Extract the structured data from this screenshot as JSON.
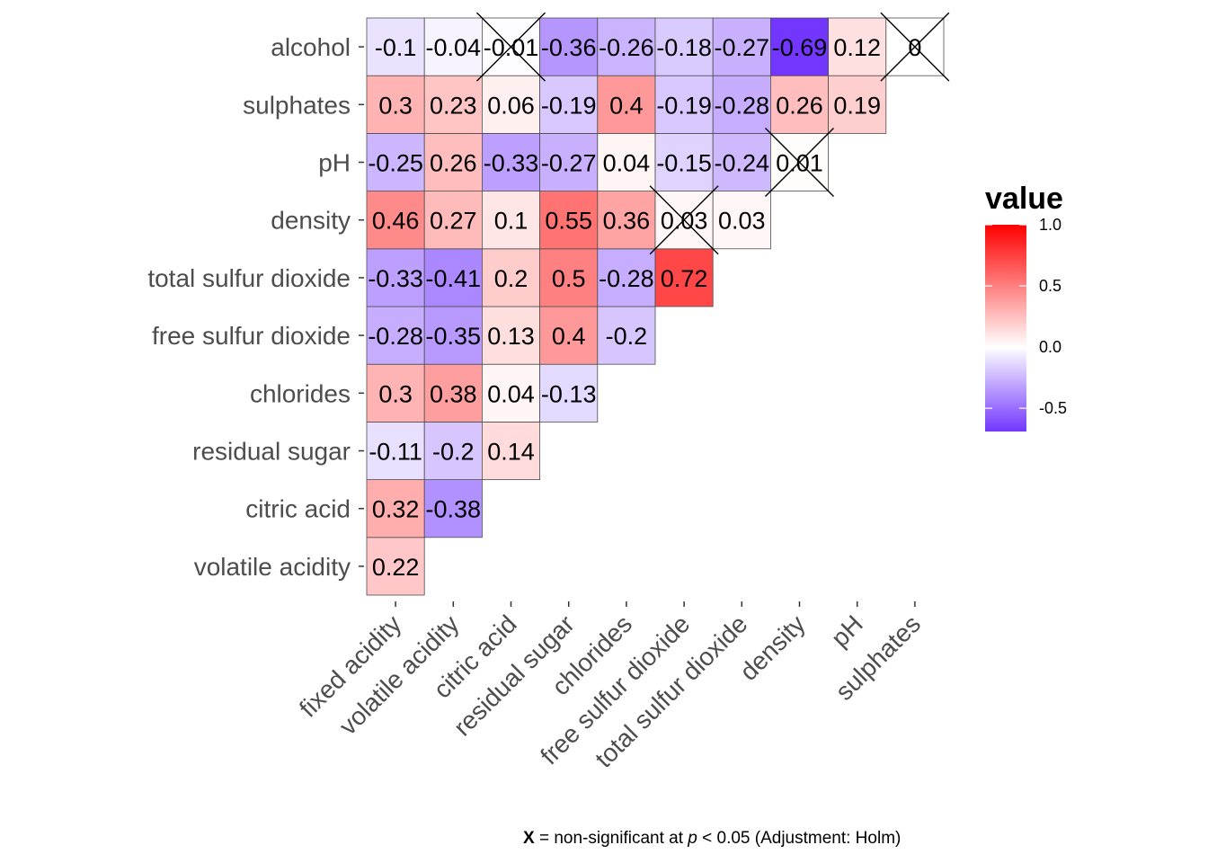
{
  "chart_data": {
    "type": "heatmap",
    "title": "",
    "xlabel": "",
    "ylabel": "",
    "x_categories": [
      "fixed acidity",
      "volatile acidity",
      "citric acid",
      "residual sugar",
      "chlorides",
      "free sulfur dioxide",
      "total sulfur dioxide",
      "density",
      "pH",
      "sulphates"
    ],
    "y_categories": [
      "volatile acidity",
      "citric acid",
      "residual sugar",
      "chlorides",
      "free sulfur dioxide",
      "total sulfur dioxide",
      "density",
      "pH",
      "sulphates",
      "alcohol"
    ],
    "cells": [
      {
        "x": "fixed acidity",
        "y": "volatile acidity",
        "value": 0.22,
        "label": "0.22",
        "significant": true
      },
      {
        "x": "fixed acidity",
        "y": "citric acid",
        "value": 0.32,
        "label": "0.32",
        "significant": true
      },
      {
        "x": "volatile acidity",
        "y": "citric acid",
        "value": -0.38,
        "label": "-0.38",
        "significant": true
      },
      {
        "x": "fixed acidity",
        "y": "residual sugar",
        "value": -0.11,
        "label": "-0.11",
        "significant": true
      },
      {
        "x": "volatile acidity",
        "y": "residual sugar",
        "value": -0.2,
        "label": "-0.2",
        "significant": true
      },
      {
        "x": "citric acid",
        "y": "residual sugar",
        "value": 0.14,
        "label": "0.14",
        "significant": true
      },
      {
        "x": "fixed acidity",
        "y": "chlorides",
        "value": 0.3,
        "label": "0.3",
        "significant": true
      },
      {
        "x": "volatile acidity",
        "y": "chlorides",
        "value": 0.38,
        "label": "0.38",
        "significant": true
      },
      {
        "x": "citric acid",
        "y": "chlorides",
        "value": 0.04,
        "label": "0.04",
        "significant": true
      },
      {
        "x": "residual sugar",
        "y": "chlorides",
        "value": -0.13,
        "label": "-0.13",
        "significant": true
      },
      {
        "x": "fixed acidity",
        "y": "free sulfur dioxide",
        "value": -0.28,
        "label": "-0.28",
        "significant": true
      },
      {
        "x": "volatile acidity",
        "y": "free sulfur dioxide",
        "value": -0.35,
        "label": "-0.35",
        "significant": true
      },
      {
        "x": "citric acid",
        "y": "free sulfur dioxide",
        "value": 0.13,
        "label": "0.13",
        "significant": true
      },
      {
        "x": "residual sugar",
        "y": "free sulfur dioxide",
        "value": 0.4,
        "label": "0.4",
        "significant": true
      },
      {
        "x": "chlorides",
        "y": "free sulfur dioxide",
        "value": -0.2,
        "label": "-0.2",
        "significant": true
      },
      {
        "x": "fixed acidity",
        "y": "total sulfur dioxide",
        "value": -0.33,
        "label": "-0.33",
        "significant": true
      },
      {
        "x": "volatile acidity",
        "y": "total sulfur dioxide",
        "value": -0.41,
        "label": "-0.41",
        "significant": true
      },
      {
        "x": "citric acid",
        "y": "total sulfur dioxide",
        "value": 0.2,
        "label": "0.2",
        "significant": true
      },
      {
        "x": "residual sugar",
        "y": "total sulfur dioxide",
        "value": 0.5,
        "label": "0.5",
        "significant": true
      },
      {
        "x": "chlorides",
        "y": "total sulfur dioxide",
        "value": -0.28,
        "label": "-0.28",
        "significant": true
      },
      {
        "x": "free sulfur dioxide",
        "y": "total sulfur dioxide",
        "value": 0.72,
        "label": "0.72",
        "significant": true
      },
      {
        "x": "fixed acidity",
        "y": "density",
        "value": 0.46,
        "label": "0.46",
        "significant": true
      },
      {
        "x": "volatile acidity",
        "y": "density",
        "value": 0.27,
        "label": "0.27",
        "significant": true
      },
      {
        "x": "citric acid",
        "y": "density",
        "value": 0.1,
        "label": "0.1",
        "significant": true
      },
      {
        "x": "residual sugar",
        "y": "density",
        "value": 0.55,
        "label": "0.55",
        "significant": true
      },
      {
        "x": "chlorides",
        "y": "density",
        "value": 0.36,
        "label": "0.36",
        "significant": true
      },
      {
        "x": "free sulfur dioxide",
        "y": "density",
        "value": 0.03,
        "label": "0.03",
        "significant": false
      },
      {
        "x": "total sulfur dioxide",
        "y": "density",
        "value": 0.03,
        "label": "0.03",
        "significant": true
      },
      {
        "x": "fixed acidity",
        "y": "pH",
        "value": -0.25,
        "label": "-0.25",
        "significant": true
      },
      {
        "x": "volatile acidity",
        "y": "pH",
        "value": 0.26,
        "label": "0.26",
        "significant": true
      },
      {
        "x": "citric acid",
        "y": "pH",
        "value": -0.33,
        "label": "-0.33",
        "significant": true
      },
      {
        "x": "residual sugar",
        "y": "pH",
        "value": -0.27,
        "label": "-0.27",
        "significant": true
      },
      {
        "x": "chlorides",
        "y": "pH",
        "value": 0.04,
        "label": "0.04",
        "significant": true
      },
      {
        "x": "free sulfur dioxide",
        "y": "pH",
        "value": -0.15,
        "label": "-0.15",
        "significant": true
      },
      {
        "x": "total sulfur dioxide",
        "y": "pH",
        "value": -0.24,
        "label": "-0.24",
        "significant": true
      },
      {
        "x": "density",
        "y": "pH",
        "value": 0.01,
        "label": "0.01",
        "significant": false
      },
      {
        "x": "fixed acidity",
        "y": "sulphates",
        "value": 0.3,
        "label": "0.3",
        "significant": true
      },
      {
        "x": "volatile acidity",
        "y": "sulphates",
        "value": 0.23,
        "label": "0.23",
        "significant": true
      },
      {
        "x": "citric acid",
        "y": "sulphates",
        "value": 0.06,
        "label": "0.06",
        "significant": true
      },
      {
        "x": "residual sugar",
        "y": "sulphates",
        "value": -0.19,
        "label": "-0.19",
        "significant": true
      },
      {
        "x": "chlorides",
        "y": "sulphates",
        "value": 0.4,
        "label": "0.4",
        "significant": true
      },
      {
        "x": "free sulfur dioxide",
        "y": "sulphates",
        "value": -0.19,
        "label": "-0.19",
        "significant": true
      },
      {
        "x": "total sulfur dioxide",
        "y": "sulphates",
        "value": -0.28,
        "label": "-0.28",
        "significant": true
      },
      {
        "x": "density",
        "y": "sulphates",
        "value": 0.26,
        "label": "0.26",
        "significant": true
      },
      {
        "x": "pH",
        "y": "sulphates",
        "value": 0.19,
        "label": "0.19",
        "significant": true
      },
      {
        "x": "fixed acidity",
        "y": "alcohol",
        "value": -0.1,
        "label": "-0.1",
        "significant": true
      },
      {
        "x": "volatile acidity",
        "y": "alcohol",
        "value": -0.04,
        "label": "-0.04",
        "significant": true
      },
      {
        "x": "citric acid",
        "y": "alcohol",
        "value": -0.01,
        "label": "-0.01",
        "significant": false
      },
      {
        "x": "residual sugar",
        "y": "alcohol",
        "value": -0.36,
        "label": "-0.36",
        "significant": true
      },
      {
        "x": "chlorides",
        "y": "alcohol",
        "value": -0.26,
        "label": "-0.26",
        "significant": true
      },
      {
        "x": "free sulfur dioxide",
        "y": "alcohol",
        "value": -0.18,
        "label": "-0.18",
        "significant": true
      },
      {
        "x": "total sulfur dioxide",
        "y": "alcohol",
        "value": -0.27,
        "label": "-0.27",
        "significant": true
      },
      {
        "x": "density",
        "y": "alcohol",
        "value": -0.69,
        "label": "-0.69",
        "significant": true
      },
      {
        "x": "pH",
        "y": "alcohol",
        "value": 0.12,
        "label": "0.12",
        "significant": true
      },
      {
        "x": "sulphates",
        "y": "alcohol",
        "value": 0,
        "label": "0",
        "significant": false
      }
    ],
    "legend": {
      "title": "value",
      "position": "right",
      "ticks": [
        "1.0",
        "0.5",
        "0.0",
        "-0.5"
      ],
      "tick_values": [
        1.0,
        0.5,
        0.0,
        -0.5
      ],
      "range": [
        -0.69,
        1.0
      ]
    },
    "colors": {
      "low": "#7236ff",
      "mid": "#ffffff",
      "high": "#ff0000",
      "cell_border": "#4d4d4d",
      "cross": "#000000"
    },
    "caption": {
      "marker": "X",
      "middle": " = non-significant at ",
      "p_symbol": "p",
      "tail": " < 0.05 (Adjustment: Holm)"
    },
    "grid": false
  }
}
